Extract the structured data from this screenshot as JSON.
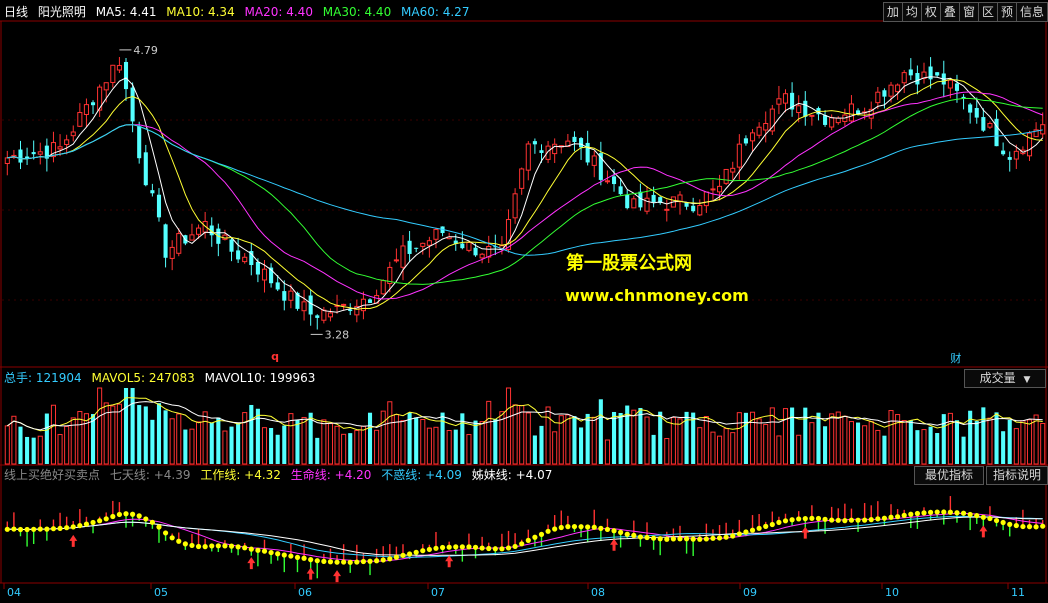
{
  "main_header": {
    "period": "日线",
    "stock_name": "阳光照明",
    "ma": [
      {
        "label": "MA5: 4.41",
        "color": "#ffffff"
      },
      {
        "label": "MA10: 4.34",
        "color": "#ffff33"
      },
      {
        "label": "MA20: 4.40",
        "color": "#ff33ff"
      },
      {
        "label": "MA30: 4.40",
        "color": "#33ff33"
      },
      {
        "label": "MA60: 4.27",
        "color": "#33ccff"
      }
    ]
  },
  "toolbar": [
    "加",
    "均",
    "权",
    "叠",
    "窗",
    "区",
    "预",
    "信息"
  ],
  "annotations": {
    "high": "4.79",
    "low": "3.28",
    "marker_q": "q",
    "marker_cai": "财"
  },
  "watermark": {
    "line1": "第一股票公式网",
    "line2": "www.chnmoney.com"
  },
  "volume_header": {
    "items": [
      {
        "label": "总手: 121904",
        "color": "#33ccff"
      },
      {
        "label": "MAVOL5: 247083",
        "color": "#ffff33"
      },
      {
        "label": "MAVOL10: 199963",
        "color": "#ffffff"
      }
    ],
    "dropdown": "成交量"
  },
  "indicator_header": {
    "items": [
      {
        "label": "线上买绝好买卖点",
        "color": "#888888"
      },
      {
        "label": "七天线: +4.39",
        "color": "#888888"
      },
      {
        "label": "工作线: +4.32",
        "color": "#ffff33"
      },
      {
        "label": "生命线: +4.20",
        "color": "#ff33ff"
      },
      {
        "label": "不惑线: +4.09",
        "color": "#33ccff"
      },
      {
        "label": "姊妹线: +4.07",
        "color": "#ffffff"
      }
    ],
    "buttons": [
      "最优指标",
      "指标说明"
    ]
  },
  "x_axis": [
    "04",
    "05",
    "06",
    "07",
    "08",
    "09",
    "10",
    "11"
  ],
  "chart_data": {
    "type": "candlestick",
    "price_range": [
      3.1,
      4.95
    ],
    "price_keys": [
      [
        0,
        4.22
      ],
      [
        8,
        4.27
      ],
      [
        14,
        4.6
      ],
      [
        17,
        4.75
      ],
      [
        20,
        4.25
      ],
      [
        24,
        3.72
      ],
      [
        30,
        3.86
      ],
      [
        34,
        3.72
      ],
      [
        37,
        3.66
      ],
      [
        43,
        3.46
      ],
      [
        46,
        3.38
      ],
      [
        50,
        3.4
      ],
      [
        55,
        3.48
      ],
      [
        60,
        3.7
      ],
      [
        66,
        3.82
      ],
      [
        70,
        3.74
      ],
      [
        75,
        3.7
      ],
      [
        79,
        4.28
      ],
      [
        85,
        4.32
      ],
      [
        90,
        4.15
      ],
      [
        95,
        3.95
      ],
      [
        99,
        3.98
      ],
      [
        104,
        3.98
      ],
      [
        108,
        4.05
      ],
      [
        113,
        4.4
      ],
      [
        118,
        4.53
      ],
      [
        124,
        4.44
      ],
      [
        130,
        4.5
      ],
      [
        136,
        4.68
      ],
      [
        142,
        4.63
      ],
      [
        147,
        4.45
      ],
      [
        152,
        4.24
      ],
      [
        157,
        4.41
      ]
    ],
    "candle_count": 158
  },
  "colors": {
    "up": "#ff3232",
    "down": "#54ffff",
    "ma5": "#ffffff",
    "ma10": "#ffff33",
    "ma20": "#ff33ff",
    "ma30": "#33ff33",
    "ma60": "#33ccff",
    "grid": "#8b0000"
  }
}
